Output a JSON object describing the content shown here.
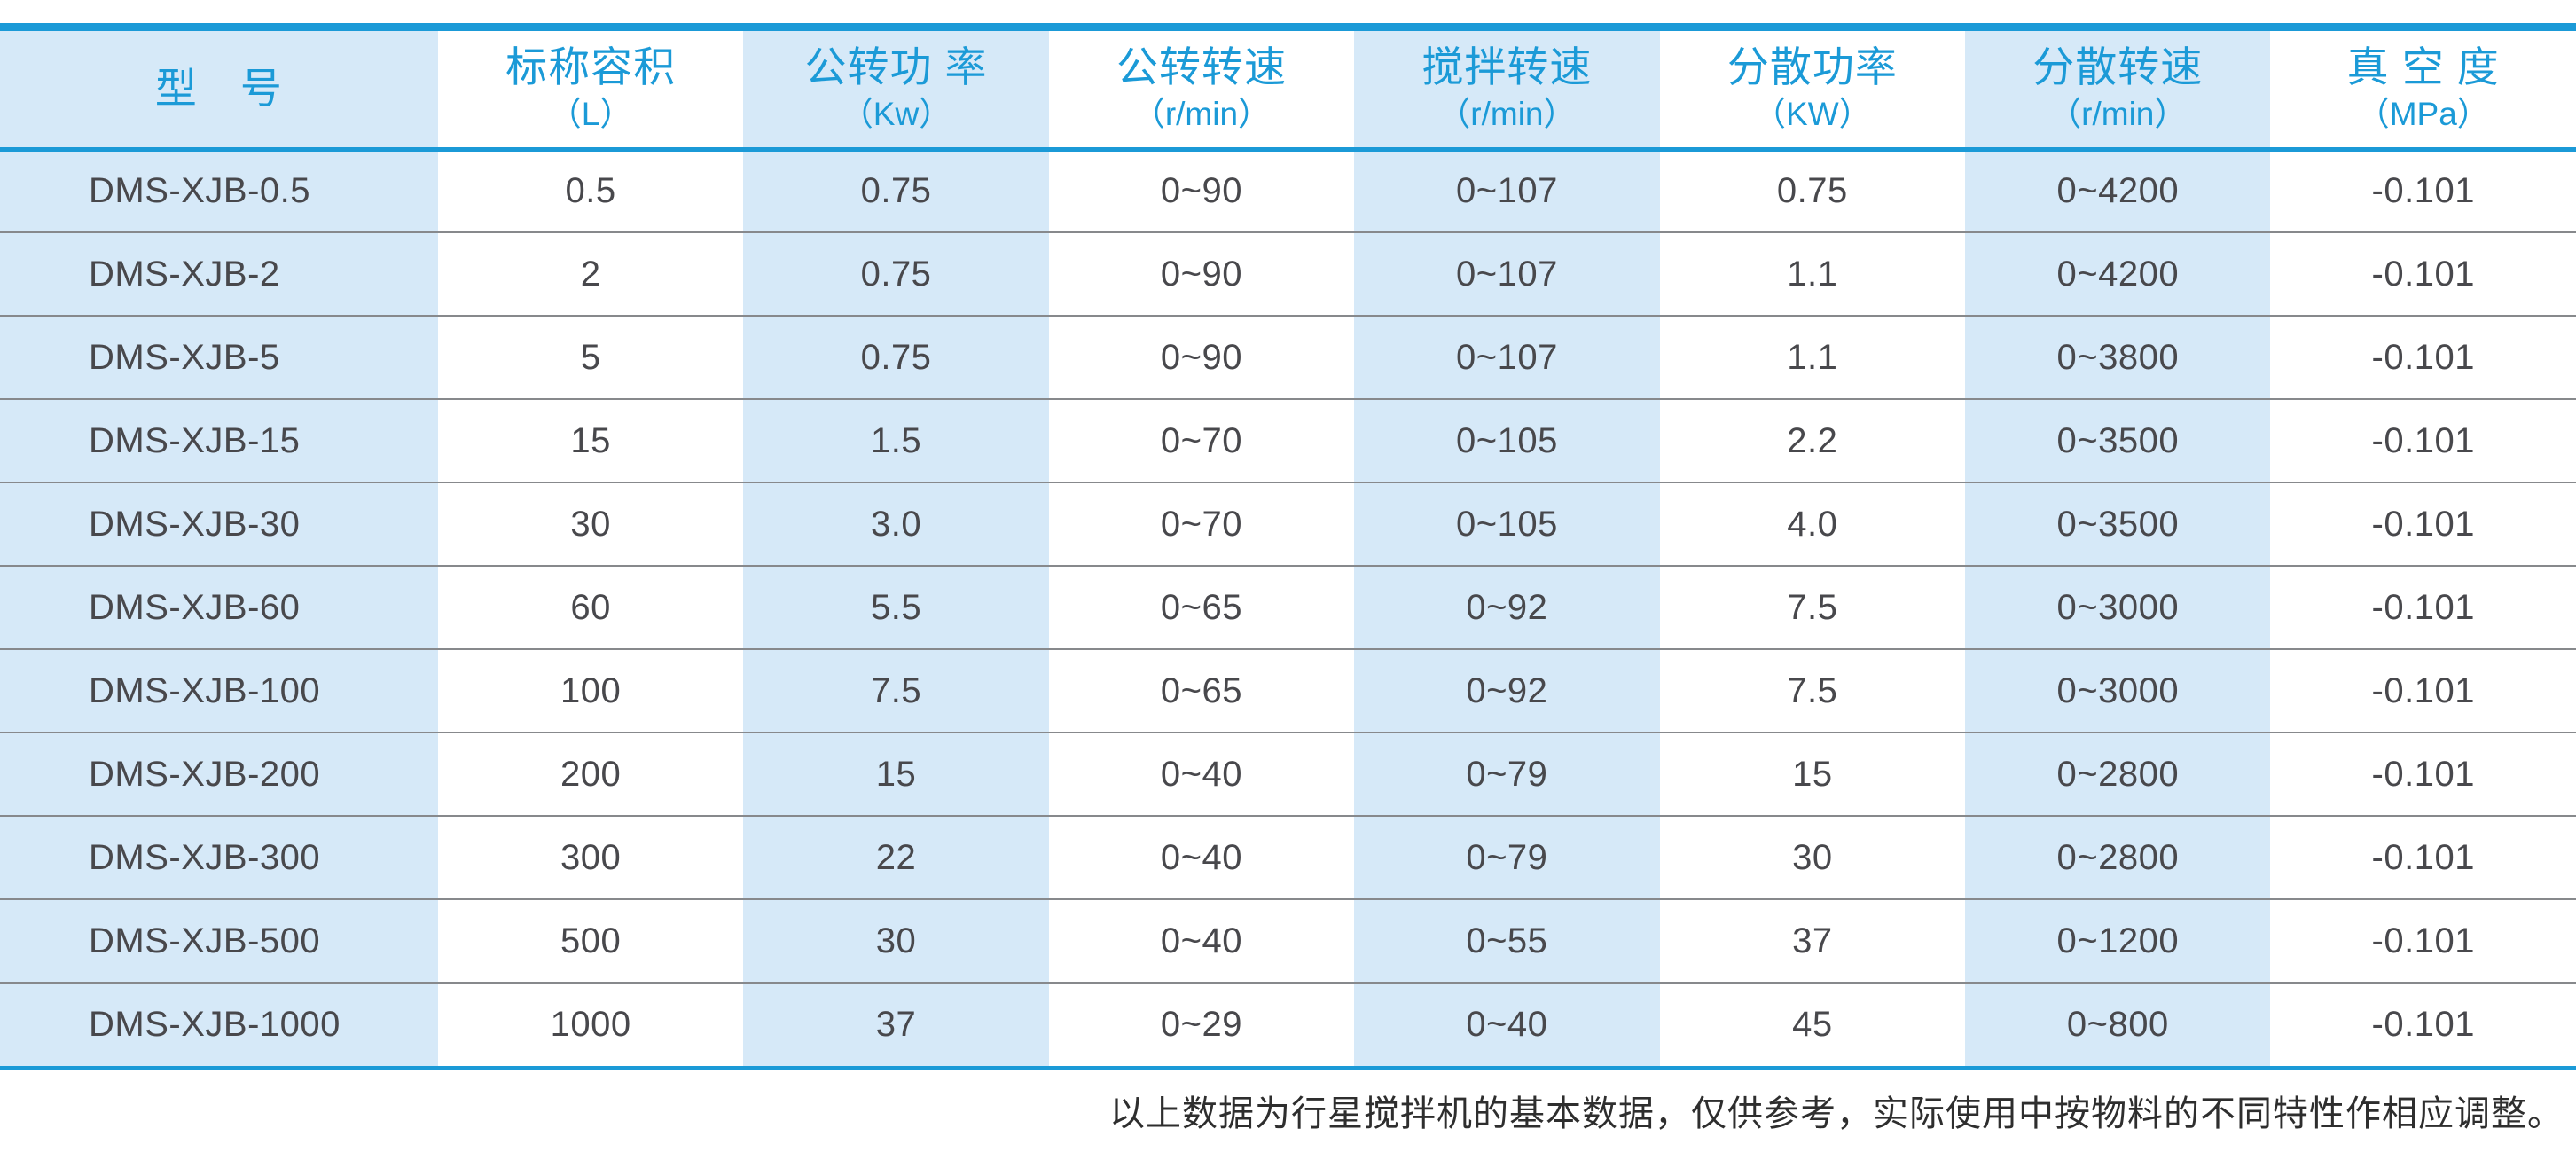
{
  "table": {
    "headers": [
      {
        "title": "型　号",
        "unit": ""
      },
      {
        "title": "标称容积",
        "unit": "（L）"
      },
      {
        "title": "公转功 率",
        "unit": "（Kw）"
      },
      {
        "title": "公转转速",
        "unit": "（r/min）"
      },
      {
        "title": "搅拌转速",
        "unit": "（r/min）"
      },
      {
        "title": "分散功率",
        "unit": "（KW）"
      },
      {
        "title": "分散转速",
        "unit": "（r/min）"
      },
      {
        "title": "真 空 度",
        "unit": "（MPa）"
      }
    ],
    "rows": [
      [
        "DMS-XJB-0.5",
        "0.5",
        "0.75",
        "0~90",
        "0~107",
        "0.75",
        "0~4200",
        "-0.101"
      ],
      [
        "DMS-XJB-2",
        "2",
        "0.75",
        "0~90",
        "0~107",
        "1.1",
        "0~4200",
        "-0.101"
      ],
      [
        "DMS-XJB-5",
        "5",
        "0.75",
        "0~90",
        "0~107",
        "1.1",
        "0~3800",
        "-0.101"
      ],
      [
        "DMS-XJB-15",
        "15",
        "1.5",
        "0~70",
        "0~105",
        "2.2",
        "0~3500",
        "-0.101"
      ],
      [
        "DMS-XJB-30",
        "30",
        "3.0",
        "0~70",
        "0~105",
        "4.0",
        "0~3500",
        "-0.101"
      ],
      [
        "DMS-XJB-60",
        "60",
        "5.5",
        "0~65",
        "0~92",
        "7.5",
        "0~3000",
        "-0.101"
      ],
      [
        "DMS-XJB-100",
        "100",
        "7.5",
        "0~65",
        "0~92",
        "7.5",
        "0~3000",
        "-0.101"
      ],
      [
        "DMS-XJB-200",
        "200",
        "15",
        "0~40",
        "0~79",
        "15",
        "0~2800",
        "-0.101"
      ],
      [
        "DMS-XJB-300",
        "300",
        "22",
        "0~40",
        "0~79",
        "30",
        "0~2800",
        "-0.101"
      ],
      [
        "DMS-XJB-500",
        "500",
        "30",
        "0~40",
        "0~55",
        "37",
        "0~1200",
        "-0.101"
      ],
      [
        "DMS-XJB-1000",
        "1000",
        "37",
        "0~29",
        "0~40",
        "45",
        "0~800",
        "-0.101"
      ]
    ]
  },
  "footer": {
    "note": "以上数据为行星搅拌机的基本数据，仅供参考，实际使用中按物料的不同特性作相应调整。"
  },
  "colors": {
    "accent_blue": "#1B9AD7",
    "shaded_column": "#D6E9F8",
    "body_text": "#48484C",
    "row_divider": "#87898C"
  }
}
